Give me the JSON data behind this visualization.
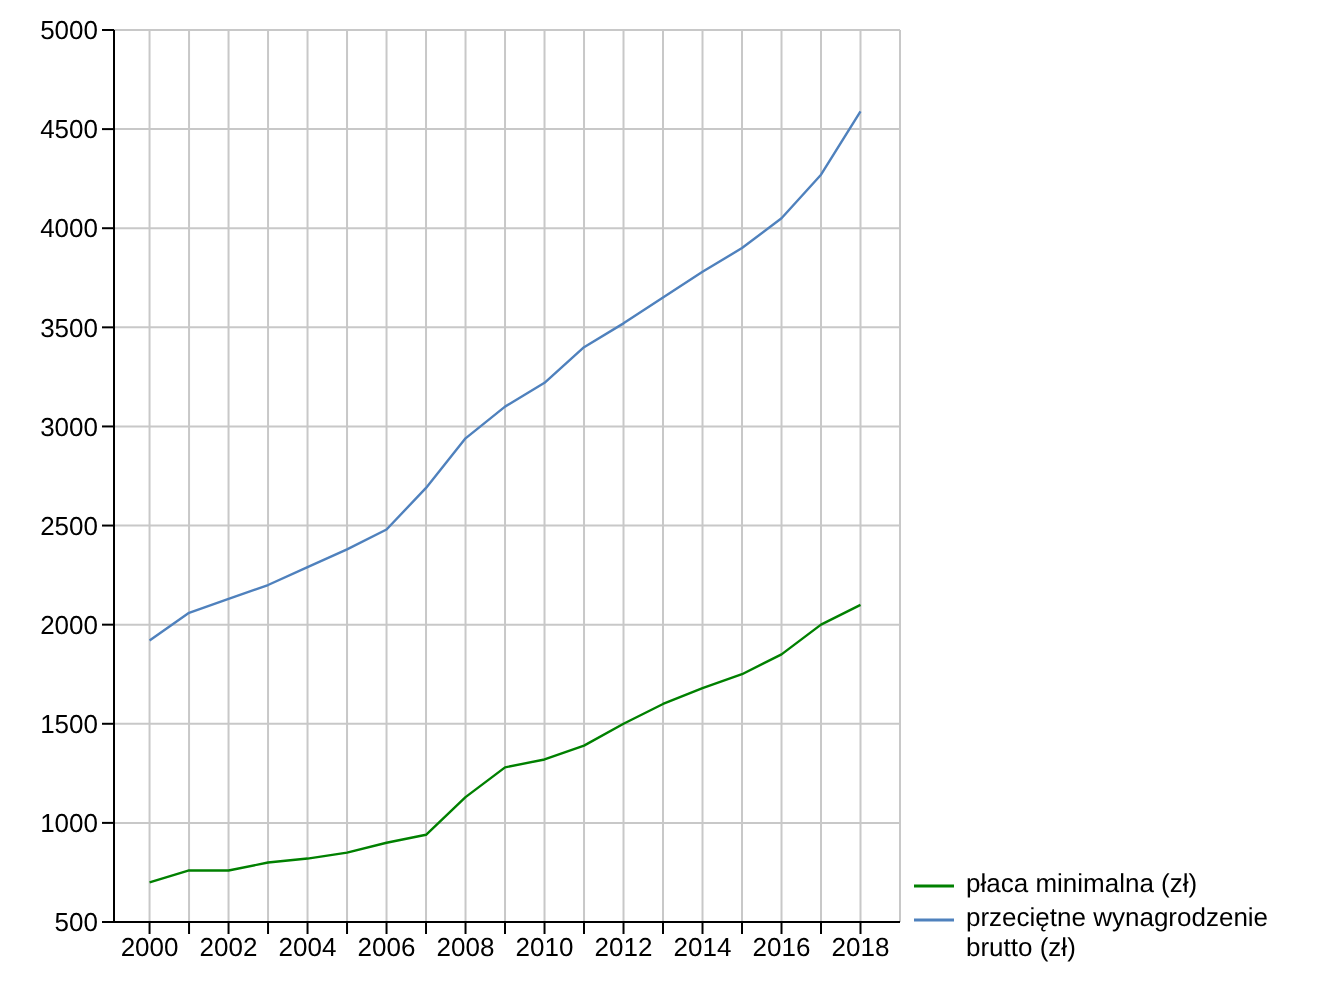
{
  "chart_data": {
    "type": "line",
    "x": [
      2000,
      2001,
      2002,
      2003,
      2004,
      2005,
      2006,
      2007,
      2008,
      2009,
      2010,
      2011,
      2012,
      2013,
      2014,
      2015,
      2016,
      2017,
      2018
    ],
    "series": [
      {
        "name": "płaca minimalna (zł)",
        "color": "#008000",
        "values": [
          700,
          760,
          760,
          800,
          820,
          850,
          900,
          940,
          1130,
          1280,
          1320,
          1390,
          1500,
          1600,
          1680,
          1750,
          1850,
          2000,
          2100
        ]
      },
      {
        "name": "przeciętne wynagrodzenie brutto (zł)",
        "color": "#4f81bd",
        "values": [
          1920,
          2060,
          2130,
          2200,
          2290,
          2380,
          2480,
          2690,
          2940,
          3100,
          3220,
          3400,
          3520,
          3650,
          3780,
          3900,
          4050,
          4270,
          4590
        ]
      }
    ],
    "xlim": [
      1999.1,
      2019
    ],
    "xticks": [
      2000,
      {
        "value": 2001,
        "label": null
      },
      2002,
      {
        "value": 2003,
        "label": null
      },
      2004,
      {
        "value": 2005,
        "label": null
      },
      2006,
      {
        "value": 2007,
        "label": null
      },
      2008,
      {
        "value": 2009,
        "label": null
      },
      2010,
      {
        "value": 2011,
        "label": null
      },
      2012,
      {
        "value": 2013,
        "label": null
      },
      2014,
      {
        "value": 2015,
        "label": null
      },
      2016,
      {
        "value": 2017,
        "label": null
      },
      2018
    ],
    "ylim": [
      500,
      5000
    ],
    "yticks": [
      500,
      1000,
      1500,
      2000,
      2500,
      3000,
      3500,
      4000,
      4500,
      5000
    ],
    "grid": true,
    "legend": "bottom right",
    "marker": "none",
    "line_style": "solid"
  }
}
